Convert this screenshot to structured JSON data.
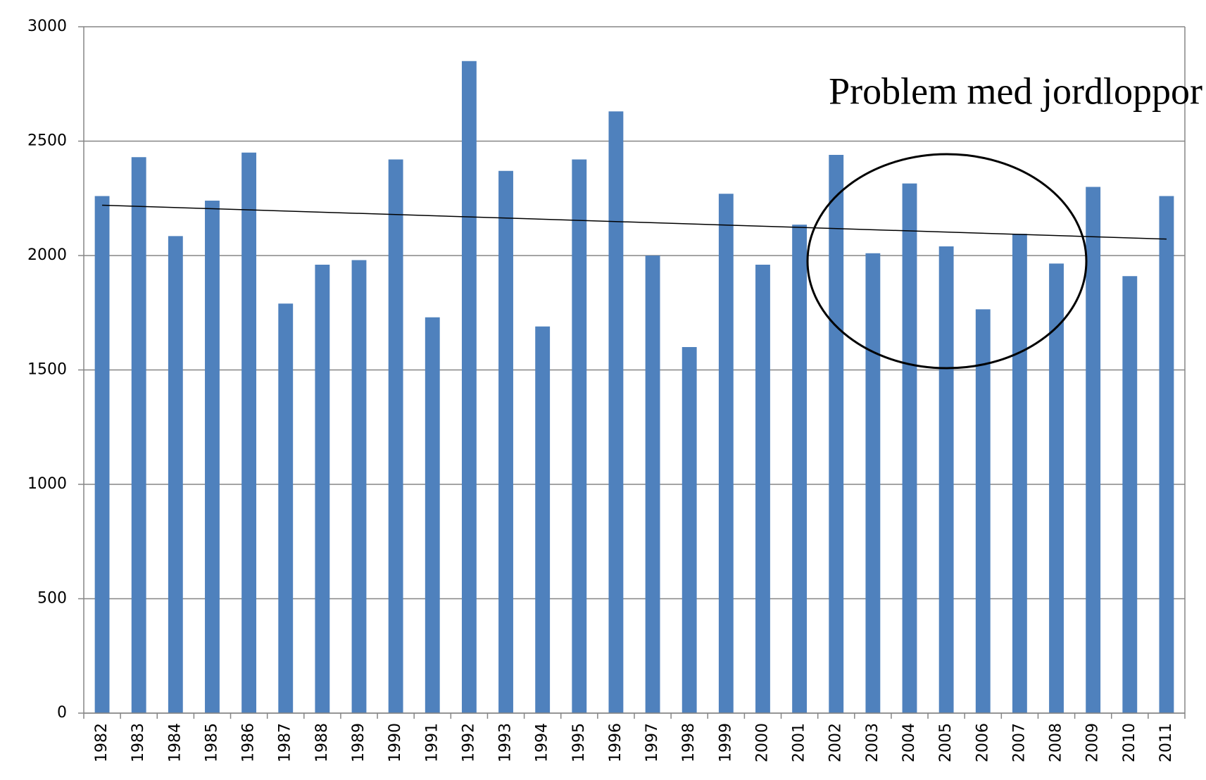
{
  "chart_data": {
    "type": "bar",
    "categories": [
      "1982",
      "1983",
      "1984",
      "1985",
      "1986",
      "1987",
      "1988",
      "1989",
      "1990",
      "1991",
      "1992",
      "1993",
      "1994",
      "1995",
      "1996",
      "1997",
      "1998",
      "1999",
      "2000",
      "2001",
      "2002",
      "2003",
      "2004",
      "2005",
      "2006",
      "2007",
      "2008",
      "2009",
      "2010",
      "2011"
    ],
    "values": [
      2260,
      2430,
      2085,
      2240,
      2450,
      1790,
      1960,
      1980,
      2420,
      1730,
      2850,
      2370,
      1690,
      2420,
      2630,
      2000,
      1600,
      2270,
      1960,
      2135,
      2440,
      2010,
      2315,
      2040,
      1765,
      2095,
      1965,
      2300,
      1910,
      2260
    ],
    "color": "#4f81bd",
    "ylim": [
      0,
      3000
    ],
    "yticks": [
      0,
      500,
      1000,
      1500,
      2000,
      2500,
      3000
    ],
    "grid": true,
    "trendline": {
      "start": 2220,
      "end": 2072
    },
    "annotation": "Problem med jordloppor"
  }
}
